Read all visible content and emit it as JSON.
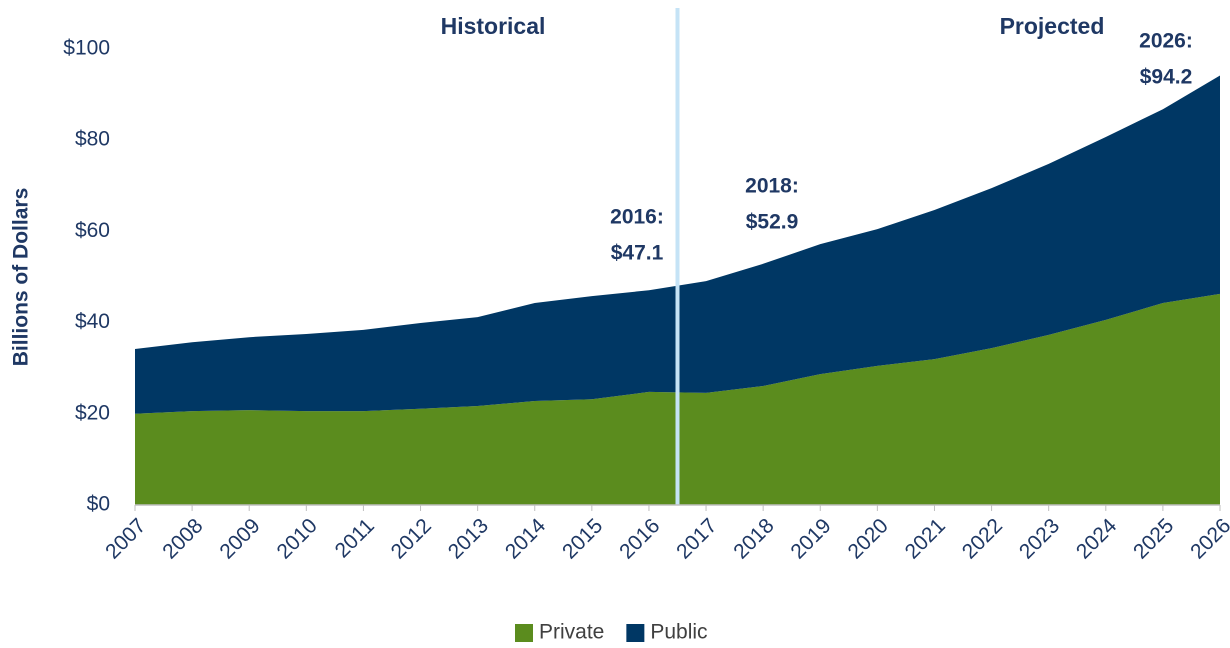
{
  "chart_data": {
    "type": "stacked_area",
    "y_axis_label": "Billions of Dollars",
    "categories": [
      "2007",
      "2008",
      "2009",
      "2010",
      "2011",
      "2012",
      "2013",
      "2014",
      "2015",
      "2016",
      "2017",
      "2018",
      "2019",
      "2020",
      "2021",
      "2022",
      "2023",
      "2024",
      "2025",
      "2026"
    ],
    "series": [
      {
        "name": "Private",
        "color": "#5b8c1e",
        "values": [
          20.0,
          20.6,
          20.8,
          20.6,
          20.6,
          21.1,
          21.7,
          22.8,
          23.2,
          24.8,
          24.6,
          26.1,
          28.7,
          30.5,
          32.0,
          34.4,
          37.3,
          40.6,
          44.3,
          46.3
        ]
      },
      {
        "name": "Public",
        "color": "#003764",
        "values": [
          14.2,
          15.1,
          16.0,
          16.9,
          17.8,
          18.8,
          19.5,
          21.5,
          22.6,
          22.3,
          24.5,
          26.8,
          28.5,
          30.0,
          32.7,
          35.1,
          37.5,
          40.1,
          42.5,
          47.9
        ]
      }
    ],
    "ylim": [
      0,
      100
    ],
    "yticks": [
      {
        "value": 0,
        "label": "$0"
      },
      {
        "value": 20,
        "label": "$20"
      },
      {
        "value": 40,
        "label": "$40"
      },
      {
        "value": 60,
        "label": "$60"
      },
      {
        "value": 80,
        "label": "$80"
      },
      {
        "value": 100,
        "label": "$100"
      }
    ],
    "section_labels": [
      "Historical",
      "Projected"
    ],
    "annotations": [
      {
        "year": "2016:",
        "total": "$47.1"
      },
      {
        "year": "2018:",
        "total": "$52.9"
      },
      {
        "year": "2026:",
        "total": "$94.2"
      }
    ],
    "legend": "bottom"
  }
}
